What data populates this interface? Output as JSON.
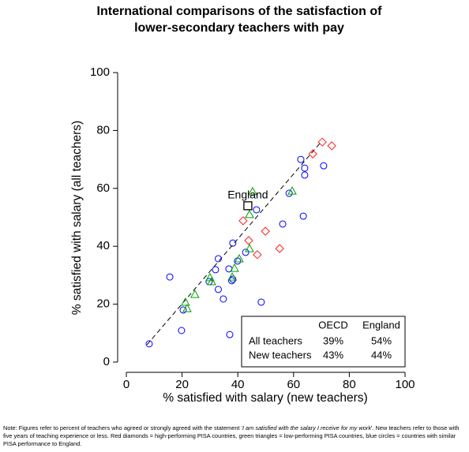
{
  "chart_data": {
    "type": "scatter",
    "title": [
      "International comparisons of the satisfaction of",
      "lower-secondary teachers with pay"
    ],
    "x_label": "% satisfied with salary (new teachers)",
    "y_label": "% satisfied with salary (all teachers)",
    "xlim": [
      0,
      100
    ],
    "ylim": [
      0,
      100
    ],
    "xticks": [
      0,
      20,
      40,
      60,
      80,
      100
    ],
    "yticks": [
      0,
      20,
      40,
      60,
      80,
      100
    ],
    "series": [
      {
        "color": "#0000ff",
        "marker": "circle",
        "x": [
          8.2,
          15.6,
          19.8,
          20.4,
          29.7,
          32,
          33,
          33,
          34.8,
          36.8,
          37.8,
          37.1,
          38.2,
          38.2,
          39.9,
          42.8,
          46.7,
          48.4,
          56.1,
          58.4,
          62.6,
          63.5,
          64,
          64,
          70.8
        ],
        "values": [
          6.3,
          29.4,
          10.9,
          18,
          27.8,
          31.9,
          35.7,
          25.1,
          21.8,
          32.2,
          28.1,
          9.5,
          28.6,
          41.1,
          34.9,
          37.9,
          52.6,
          20.7,
          47.7,
          58.3,
          70,
          50.4,
          67,
          64.6,
          67.8
        ]
      },
      {
        "color": "#ff2020",
        "marker": "diamond",
        "x": [
          41.9,
          43.9,
          47,
          49.9,
          55,
          66.9,
          70.3,
          73.7
        ],
        "values": [
          48.8,
          42,
          37.1,
          45.2,
          39.2,
          71.9,
          76,
          74.7
        ]
      },
      {
        "color": "#00a000",
        "marker": "triangle",
        "x": [
          21.2,
          21.8,
          24.6,
          30,
          30.6,
          38,
          38.8,
          40.5,
          44.2,
          44.2,
          45.3,
          59.5
        ],
        "values": [
          20.7,
          18.5,
          23.4,
          29.2,
          27.8,
          29.4,
          32.4,
          35.7,
          39.2,
          51,
          58.9,
          59.1
        ]
      },
      {
        "name": "England",
        "color": "#000000",
        "marker": "square",
        "x": [
          43.6
        ],
        "values": [
          54
        ]
      }
    ],
    "fit_line": {
      "x": [
        7.4,
        69.4
      ],
      "values": [
        6,
        75.5
      ]
    },
    "table": {
      "header": [
        "OECD",
        "England"
      ],
      "rows": [
        [
          "All teachers",
          "39%",
          "54%"
        ],
        [
          "New teachers",
          "43%",
          "44%"
        ]
      ]
    },
    "note": {
      "prefix": "Note: Figures refer to percent of teachers who agreed or strongly agreed with the statement '",
      "quote": "I am satisfied with the salary I receive for my work",
      "suffix": "'. New teachers refer to those with five years of teaching experience or less. Red diamonds = high-performing PISA countries, green triangles = low-performing PISA countries, blue circles = countries with similar PISA performance to England."
    }
  }
}
